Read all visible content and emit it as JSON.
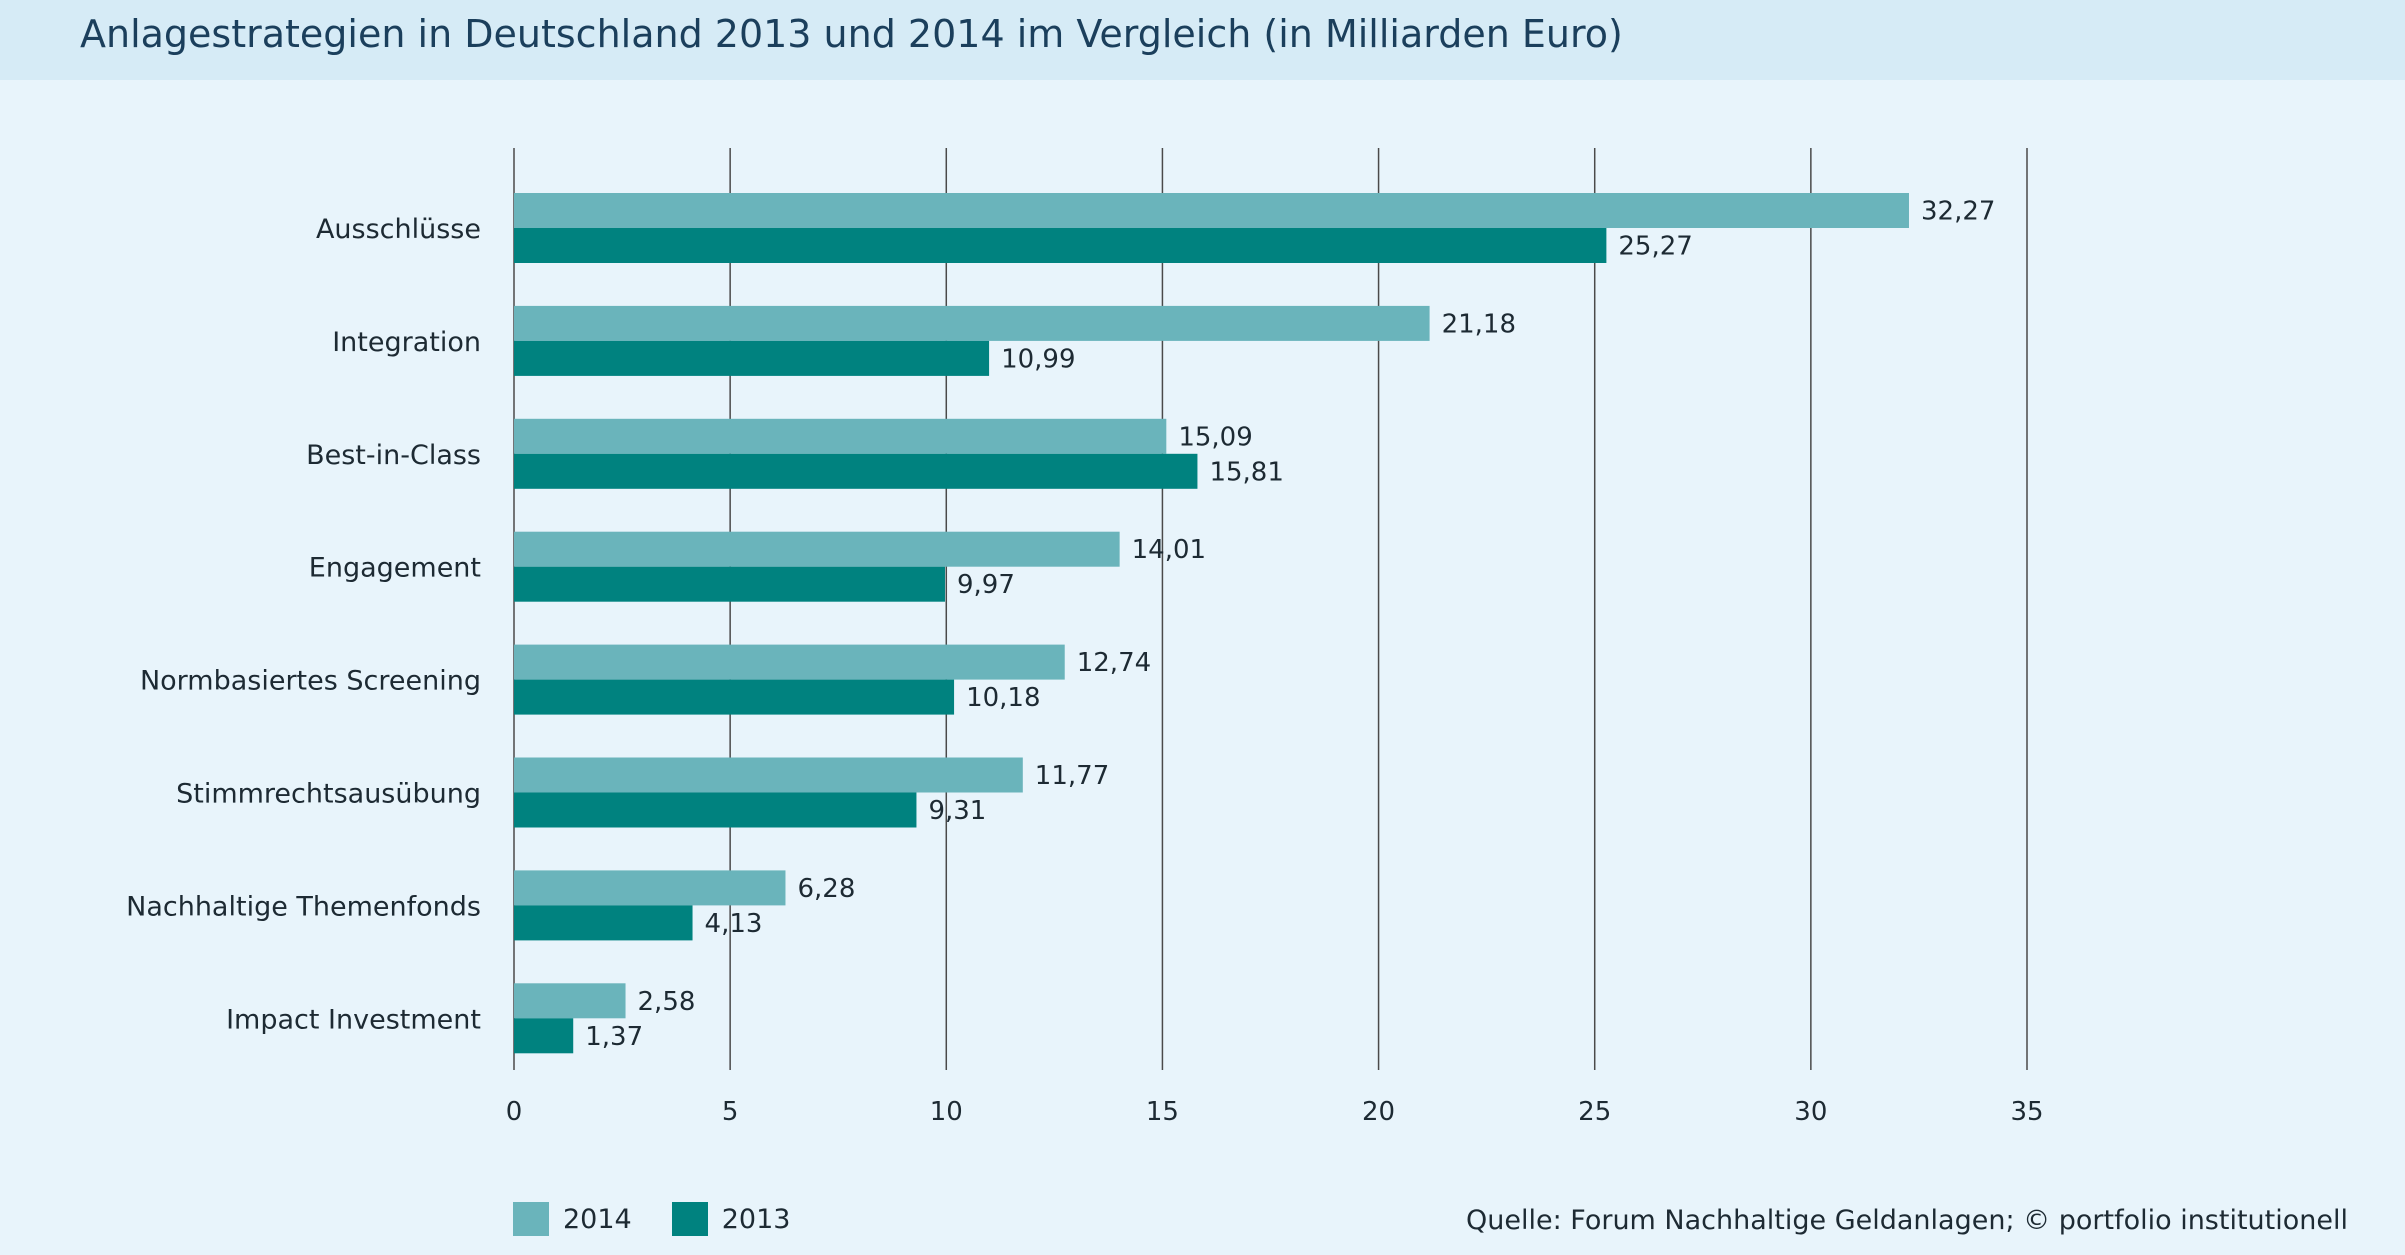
{
  "title": "Anlagestrategien in Deutschland 2013 und 2014 im Vergleich (in Milliarden Euro)",
  "source": "Quelle: Forum Nachhaltige Geldanlagen; © portfolio institutionell",
  "colors": {
    "s2014": "#6ab4bb",
    "s2013": "#00827f",
    "background": "#e8f4fb",
    "title_bar": "#d6ebf6"
  },
  "legend": [
    {
      "label": "2014",
      "color": "#6ab4bb"
    },
    {
      "label": "2013",
      "color": "#00827f"
    }
  ],
  "chart_data": {
    "type": "bar",
    "orientation": "horizontal",
    "title": "Anlagestrategien in Deutschland 2013 und 2014 im Vergleich (in Milliarden Euro)",
    "categories": [
      "Ausschlüsse",
      "Integration",
      "Best-in-Class",
      "Engagement",
      "Normbasiertes Screening",
      "Stimmrechtsausübung",
      "Nachhaltige Themenfonds",
      "Impact Investment"
    ],
    "series": [
      {
        "name": "2014",
        "values": [
          32.27,
          21.18,
          15.09,
          14.01,
          12.74,
          11.77,
          6.28,
          2.58
        ],
        "labels": [
          "32,27",
          "21,18",
          "15,09",
          "14,01",
          "12,74",
          "11,77",
          "6,28",
          "2,58"
        ]
      },
      {
        "name": "2013",
        "values": [
          25.27,
          10.99,
          15.81,
          9.97,
          10.18,
          9.31,
          4.13,
          1.37
        ],
        "labels": [
          "25,27",
          "10,99",
          "15,81",
          "9,97",
          "10,18",
          "9,31",
          "4,13",
          "1,37"
        ]
      }
    ],
    "xlim": [
      0,
      35
    ],
    "xticks": [
      0,
      5,
      10,
      15,
      20,
      25,
      30,
      35
    ],
    "xlabel": "",
    "ylabel": "",
    "grid": "vertical",
    "legend_position": "bottom-left"
  }
}
